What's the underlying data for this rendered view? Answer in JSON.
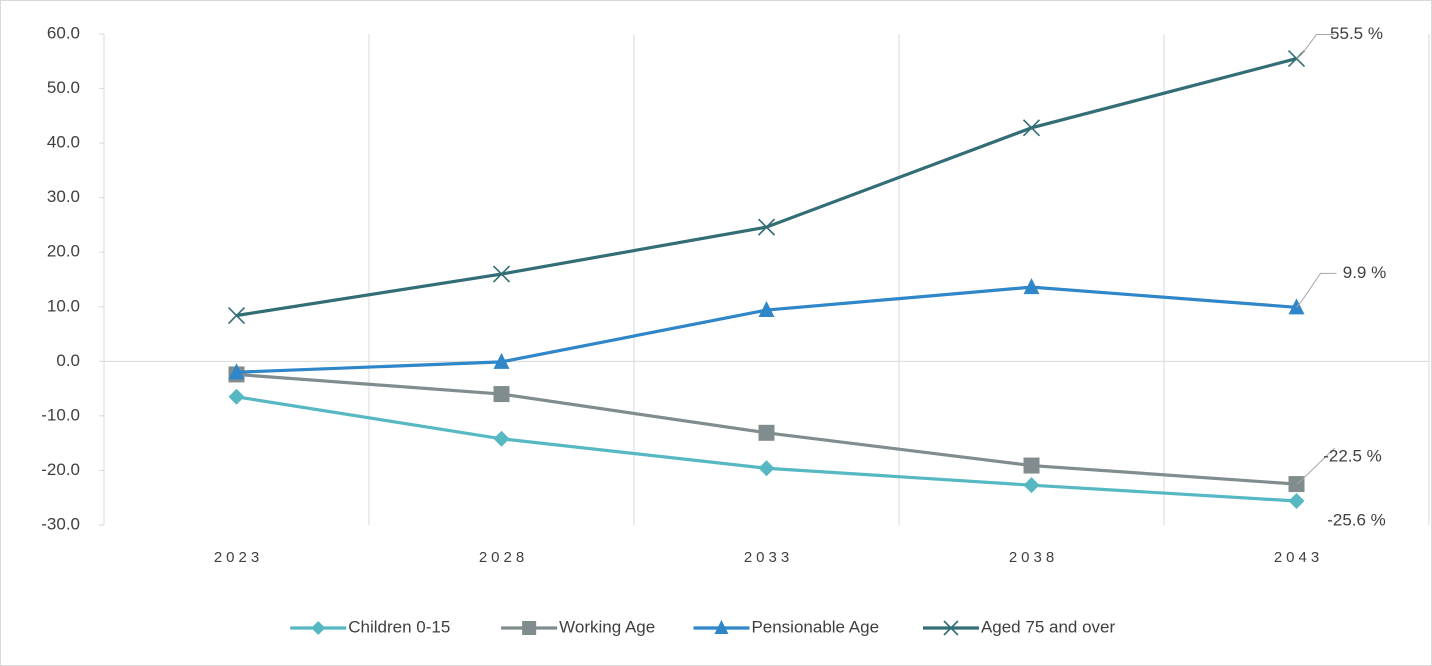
{
  "chart_data": {
    "type": "line",
    "categories": [
      "2023",
      "2028",
      "2033",
      "2038",
      "2043"
    ],
    "series": [
      {
        "name": "Children 0-15",
        "color": "#55b8c3",
        "marker": "diamond",
        "values": [
          -6.5,
          -14.2,
          -19.6,
          -22.7,
          -25.6
        ],
        "value_labels": [
          null,
          null,
          null,
          null,
          "-25.6 %"
        ]
      },
      {
        "name": "Working Age",
        "color": "#818c8e",
        "marker": "square",
        "values": [
          -2.4,
          -6.0,
          -13.1,
          -19.1,
          -22.5
        ],
        "value_labels": [
          null,
          null,
          null,
          null,
          "-22.5 %"
        ]
      },
      {
        "name": "Pensionable Age",
        "color": "#2f86c9",
        "marker": "triangle",
        "values": [
          -2.0,
          -0.1,
          9.4,
          13.6,
          9.9
        ],
        "value_labels": [
          null,
          null,
          null,
          null,
          "9.9 %"
        ]
      },
      {
        "name": "Aged 75 and over",
        "color": "#336e76",
        "marker": "x",
        "values": [
          8.4,
          16.0,
          24.6,
          42.8,
          55.5
        ],
        "value_labels": [
          null,
          null,
          null,
          null,
          "55.5 %"
        ]
      }
    ],
    "ylim": [
      -30,
      60
    ],
    "yticks": [
      {
        "value": -30,
        "label": "-30.0"
      },
      {
        "value": -20,
        "label": "-20.0"
      },
      {
        "value": -10,
        "label": "-10.0"
      },
      {
        "value": 0,
        "label": "0.0"
      },
      {
        "value": 10,
        "label": "10.0"
      },
      {
        "value": 20,
        "label": "20.0"
      },
      {
        "value": 30,
        "label": "30.0"
      },
      {
        "value": 40,
        "label": "40.0"
      },
      {
        "value": 50,
        "label": "50.0"
      },
      {
        "value": 60,
        "label": "60.0"
      }
    ],
    "grid": true,
    "legend": "bottom"
  }
}
